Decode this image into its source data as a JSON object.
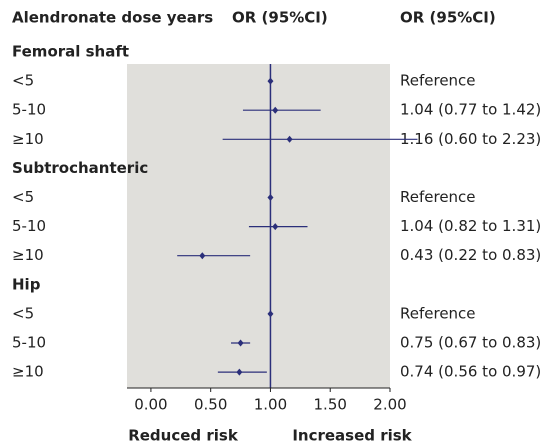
{
  "chart_data": {
    "type": "forest",
    "column_headers": [
      "Alendronate dose years",
      "OR (95%CI)",
      "OR (95%CI)"
    ],
    "groups": [
      {
        "name": "Femoral shaft",
        "rows": [
          {
            "label": "<5",
            "or": 1,
            "lo": null,
            "hi": null,
            "value_label": "Reference"
          },
          {
            "label": "5-10",
            "or": 1.04,
            "lo": 0.77,
            "hi": 1.42,
            "value_label": "1.04 (0.77 to 1.42)"
          },
          {
            "label": "≥10",
            "or": 1.16,
            "lo": 0.6,
            "hi": 2.23,
            "value_label": "1.16 (0.60 to 2.23)"
          }
        ]
      },
      {
        "name": "Subtrochanteric",
        "rows": [
          {
            "label": "<5",
            "or": 1,
            "lo": null,
            "hi": null,
            "value_label": "Reference"
          },
          {
            "label": "5-10",
            "or": 1.04,
            "lo": 0.82,
            "hi": 1.31,
            "value_label": "1.04 (0.82 to 1.31)"
          },
          {
            "label": "≥10",
            "or": 0.43,
            "lo": 0.22,
            "hi": 0.83,
            "value_label": "0.43 (0.22 to 0.83)"
          }
        ]
      },
      {
        "name": "Hip",
        "rows": [
          {
            "label": "<5",
            "or": 1,
            "lo": null,
            "hi": null,
            "value_label": "Reference"
          },
          {
            "label": "5-10",
            "or": 0.75,
            "lo": 0.67,
            "hi": 0.83,
            "value_label": "0.75 (0.67 to 0.83)"
          },
          {
            "label": "≥10",
            "or": 0.74,
            "lo": 0.56,
            "hi": 0.97,
            "value_label": "0.74 (0.56 to 0.97)"
          }
        ]
      }
    ],
    "xlim": [
      -0.2,
      2.0
    ],
    "xticks": [
      {
        "value": 0,
        "label": "0.00"
      },
      {
        "value": 0.5,
        "label": "0.50"
      },
      {
        "value": 1,
        "label": "1.00"
      },
      {
        "value": 1.5,
        "label": "1.50"
      },
      {
        "value": 2,
        "label": "2.00"
      }
    ],
    "null_line": 1,
    "annotations": [
      "Reduced risk",
      "Increased risk"
    ],
    "color": "#2b2f7a",
    "panel_color": "#e0dfdb"
  }
}
